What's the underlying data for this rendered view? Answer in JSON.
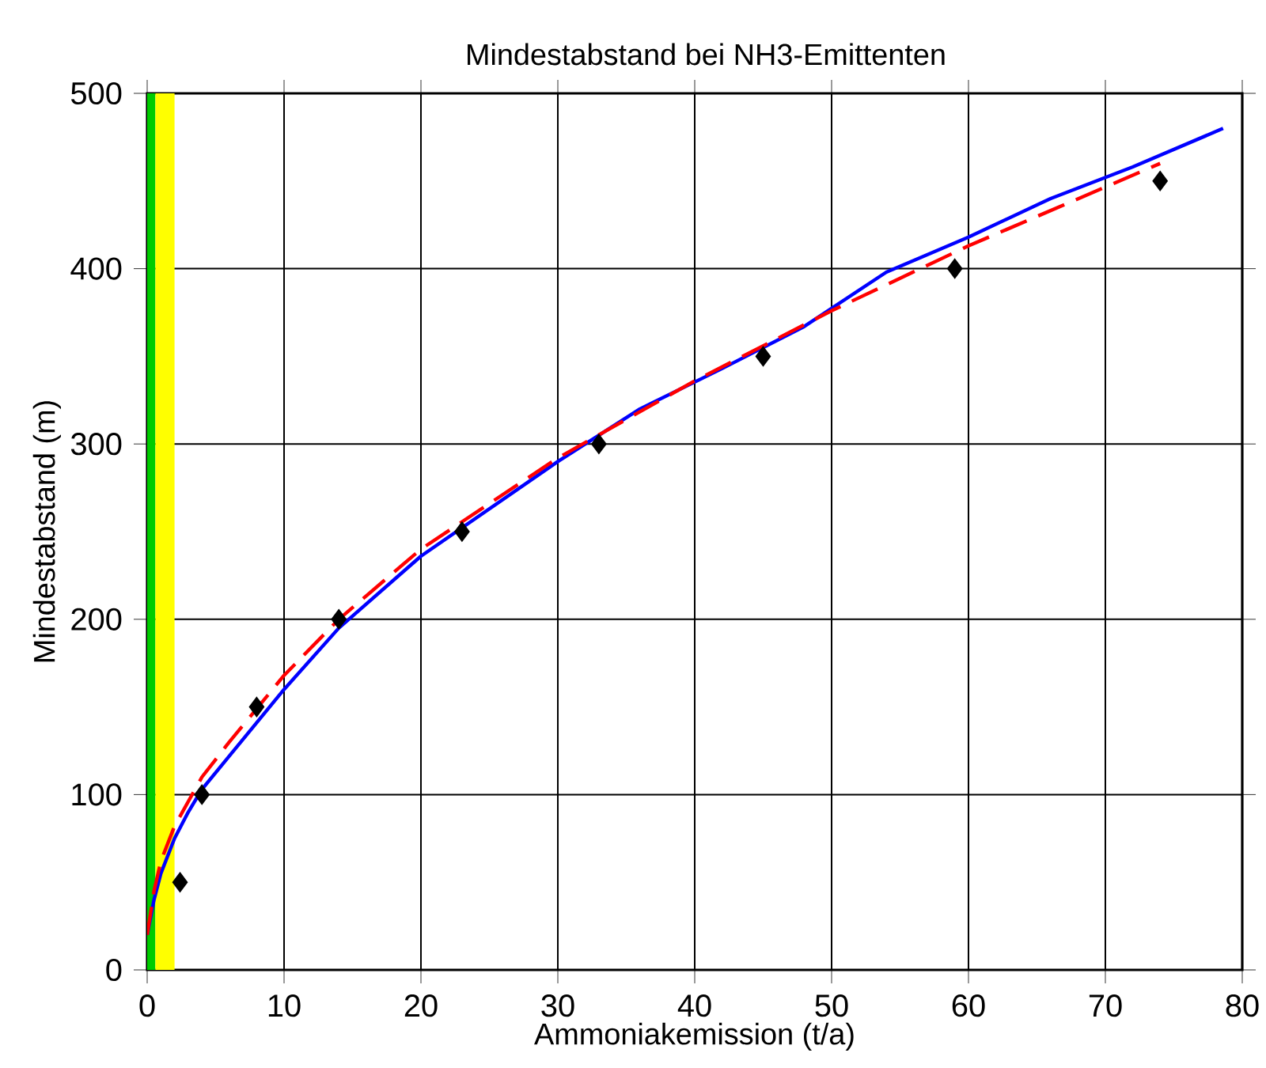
{
  "chart_data": {
    "type": "line",
    "title": "Mindestabstand bei NH3-Emittenten",
    "xlabel": "Ammoniakemission (t/a)",
    "ylabel": "Mindestabstand (m)",
    "xlim": [
      0,
      80
    ],
    "ylim": [
      0,
      500
    ],
    "xticks": [
      0,
      10,
      20,
      30,
      40,
      50,
      60,
      70,
      80
    ],
    "yticks": [
      0,
      100,
      200,
      300,
      400,
      500
    ],
    "grid": true,
    "bands": [
      {
        "axis": "x",
        "from": 0,
        "to": 0.6,
        "color": "#00cc00"
      },
      {
        "axis": "x",
        "from": 0.6,
        "to": 2,
        "color": "#ffff00"
      }
    ],
    "series": [
      {
        "color": "#0000ff",
        "line_style": "solid",
        "marker": "none",
        "x": [
          0,
          0.5,
          1,
          2,
          3,
          4,
          6,
          10,
          14,
          20,
          25,
          30,
          36,
          42,
          48,
          54,
          60,
          66,
          72,
          78.6
        ],
        "values": [
          20,
          40,
          55,
          75,
          90,
          103,
          122,
          160,
          195,
          236,
          263,
          290,
          320,
          343,
          367,
          398,
          418,
          440,
          458,
          480
        ]
      },
      {
        "color": "#ff0000",
        "line_style": "dashed",
        "marker": "none",
        "x": [
          0,
          0.5,
          1,
          2,
          4,
          6,
          10,
          14,
          20,
          30,
          40,
          50,
          60,
          74
        ],
        "values": [
          20,
          45,
          62,
          82,
          110,
          130,
          168,
          200,
          240,
          292,
          336,
          376,
          413,
          460
        ]
      },
      {
        "type": "scatter",
        "color": "#000000",
        "marker": "diamond",
        "x": [
          2.4,
          4,
          8,
          14,
          23,
          33,
          45,
          59,
          74
        ],
        "values": [
          50,
          100,
          150,
          200,
          250,
          300,
          350,
          400,
          450
        ]
      }
    ]
  }
}
